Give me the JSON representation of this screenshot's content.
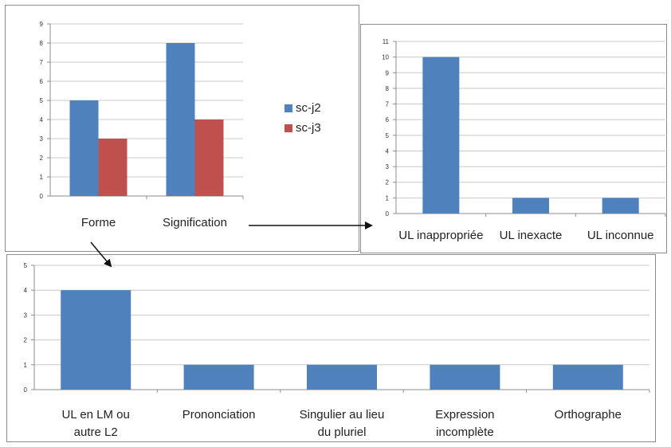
{
  "chart_data": [
    {
      "type": "bar",
      "categories": [
        "Forme",
        "Signification"
      ],
      "series": [
        {
          "name": "sc-j2",
          "values": [
            5,
            8
          ],
          "color": "#4f81bd"
        },
        {
          "name": "sc-j3",
          "values": [
            3,
            4
          ],
          "color": "#c0504d"
        }
      ],
      "ylim": [
        0,
        9
      ],
      "yticks": [
        "0",
        "1",
        "2",
        "3",
        "4",
        "5",
        "6",
        "7",
        "8",
        "9"
      ],
      "legend": "right",
      "grid": true
    },
    {
      "type": "bar",
      "categories": [
        "UL inappropriée",
        "UL inexacte",
        "UL inconnue"
      ],
      "series": [
        {
          "values": [
            10,
            1,
            1
          ],
          "color": "#4f81bd"
        }
      ],
      "ylim": [
        0,
        11
      ],
      "yticks": [
        "0",
        "1",
        "2",
        "3",
        "4",
        "5",
        "6",
        "7",
        "8",
        "9",
        "10",
        "11"
      ],
      "grid": true
    },
    {
      "type": "bar",
      "categories": [
        [
          "UL en LM ou",
          "autre L2"
        ],
        [
          "Prononciation"
        ],
        [
          "Singulier au lieu",
          "du pluriel"
        ],
        [
          "Expression",
          "incomplète"
        ],
        [
          "Orthographe"
        ]
      ],
      "series": [
        {
          "values": [
            4,
            1,
            1,
            1,
            1
          ],
          "color": "#4f81bd"
        }
      ],
      "ylim": [
        0,
        5
      ],
      "yticks": [
        "0",
        "1",
        "2",
        "3",
        "4",
        "5"
      ],
      "grid": true
    }
  ],
  "connectors": [
    {
      "from": "Signification",
      "to": "chart-2"
    },
    {
      "from": "Forme",
      "to": "chart-3"
    }
  ]
}
